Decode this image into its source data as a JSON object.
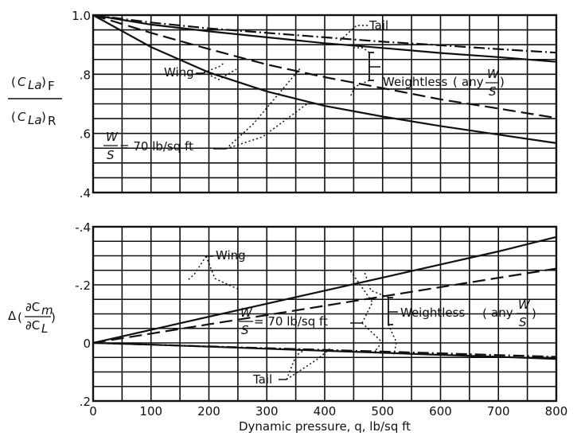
{
  "chart_data": [
    {
      "type": "line",
      "panel": "top",
      "ylabel": {
        "num": "(C_La)_F",
        "den": "(C_La)_R"
      },
      "xlim": [
        0,
        800
      ],
      "ylim": [
        0.4,
        1.0
      ],
      "grid": true,
      "yticks": [
        {
          "v": 1.0,
          "label": "1.0"
        },
        {
          "v": 0.8,
          "label": ".8"
        },
        {
          "v": 0.6,
          "label": ".6"
        },
        {
          "v": 0.4,
          "label": ".4"
        }
      ],
      "series": [
        {
          "name": "Wing",
          "style": "solid",
          "x": [
            0,
            100,
            200,
            300,
            400,
            500,
            600,
            700,
            800
          ],
          "y": [
            1.0,
            0.892,
            0.806,
            0.742,
            0.693,
            0.657,
            0.625,
            0.596,
            0.567
          ]
        },
        {
          "name": "Tail",
          "style": "solid",
          "x": [
            0,
            100,
            200,
            300,
            400,
            500,
            600,
            700,
            800
          ],
          "y": [
            1.0,
            0.968,
            0.945,
            0.925,
            0.905,
            0.889,
            0.872,
            0.858,
            0.842
          ]
        },
        {
          "name": "Wing weightless",
          "style": "dashed",
          "x": [
            0,
            100,
            200,
            300,
            400,
            500,
            600,
            700,
            800
          ],
          "y": [
            1.0,
            0.94,
            0.885,
            0.833,
            0.79,
            0.753,
            0.715,
            0.684,
            0.652
          ]
        },
        {
          "name": "Tail weightless",
          "style": "dashdot",
          "x": [
            0,
            100,
            200,
            300,
            400,
            500,
            600,
            700,
            800
          ],
          "y": [
            1.0,
            0.975,
            0.955,
            0.94,
            0.925,
            0.91,
            0.898,
            0.885,
            0.873
          ]
        }
      ],
      "annotations": {
        "tail": "Tail",
        "wing": "Wing",
        "weightless": "Weightless",
        "weightless_paren": "any",
        "w_num": "W",
        "w_den": "S",
        "w_eq": "= 70 lb/sq ft"
      }
    },
    {
      "type": "line",
      "panel": "bottom",
      "ylabel": "Δ(∂Cm/∂CL)",
      "xlabel": "Dynamic pressure, q, lb/sq ft",
      "xlim": [
        0,
        800
      ],
      "ylim": [
        0.2,
        -0.4
      ],
      "grid": true,
      "xticks": [
        0,
        100,
        200,
        300,
        400,
        500,
        600,
        700,
        800
      ],
      "yticks": [
        {
          "v": -0.4,
          "label": "-.4"
        },
        {
          "v": -0.2,
          "label": "-.2"
        },
        {
          "v": 0,
          "label": "0"
        },
        {
          "v": 0.2,
          "label": ".2"
        }
      ],
      "series": [
        {
          "name": "Wing",
          "style": "solid",
          "x": [
            0,
            100,
            200,
            300,
            400,
            500,
            600,
            700,
            800
          ],
          "y": [
            0,
            -0.045,
            -0.09,
            -0.135,
            -0.18,
            -0.225,
            -0.27,
            -0.315,
            -0.365
          ]
        },
        {
          "name": "Wing weightless",
          "style": "dashed",
          "x": [
            0,
            100,
            200,
            300,
            400,
            500,
            600,
            700,
            800
          ],
          "y": [
            0,
            -0.032,
            -0.064,
            -0.096,
            -0.128,
            -0.16,
            -0.192,
            -0.224,
            -0.256
          ]
        },
        {
          "name": "Tail",
          "style": "solid",
          "x": [
            0,
            100,
            200,
            300,
            400,
            500,
            600,
            700,
            800
          ],
          "y": [
            0,
            0.006,
            0.013,
            0.02,
            0.027,
            0.034,
            0.041,
            0.048,
            0.055
          ]
        },
        {
          "name": "Tail weightless",
          "style": "dashdot",
          "x": [
            0,
            100,
            200,
            300,
            400,
            500,
            600,
            700,
            800
          ],
          "y": [
            0,
            0.006,
            0.012,
            0.018,
            0.024,
            0.03,
            0.036,
            0.042,
            0.048
          ]
        }
      ],
      "annotations": {
        "tail": "Tail",
        "wing": "Wing",
        "weightless": "Weightless",
        "weightless_paren": "any",
        "w_num": "W",
        "w_den": "S",
        "w_eq": "= 70 lb/sq ft"
      }
    }
  ]
}
